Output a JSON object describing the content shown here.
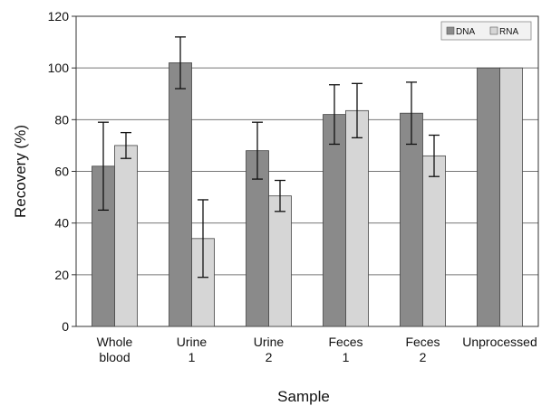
{
  "chart_data": {
    "type": "bar",
    "xlabel": "Sample",
    "ylabel": "Recovery (%)",
    "ylim": [
      0,
      120
    ],
    "yticks": [
      0,
      20,
      40,
      60,
      80,
      100,
      120
    ],
    "grid": true,
    "legend_position": "top-right",
    "categories": [
      [
        "Whole",
        "blood"
      ],
      [
        "Urine",
        "1"
      ],
      [
        "Urine",
        "2"
      ],
      [
        "Feces",
        "1"
      ],
      [
        "Feces",
        "2"
      ],
      [
        "Unprocessed"
      ]
    ],
    "series": [
      {
        "name": "DNA",
        "color": "#8a8a8a",
        "values": [
          62,
          102,
          68,
          82,
          82.5,
          100
        ],
        "errors": [
          17,
          10,
          11,
          11.5,
          12,
          null
        ]
      },
      {
        "name": "RNA",
        "color": "#d6d6d6",
        "values": [
          70,
          34,
          50.5,
          83.5,
          66,
          100
        ],
        "errors": [
          5,
          15,
          6,
          10.5,
          8,
          null
        ]
      }
    ]
  }
}
